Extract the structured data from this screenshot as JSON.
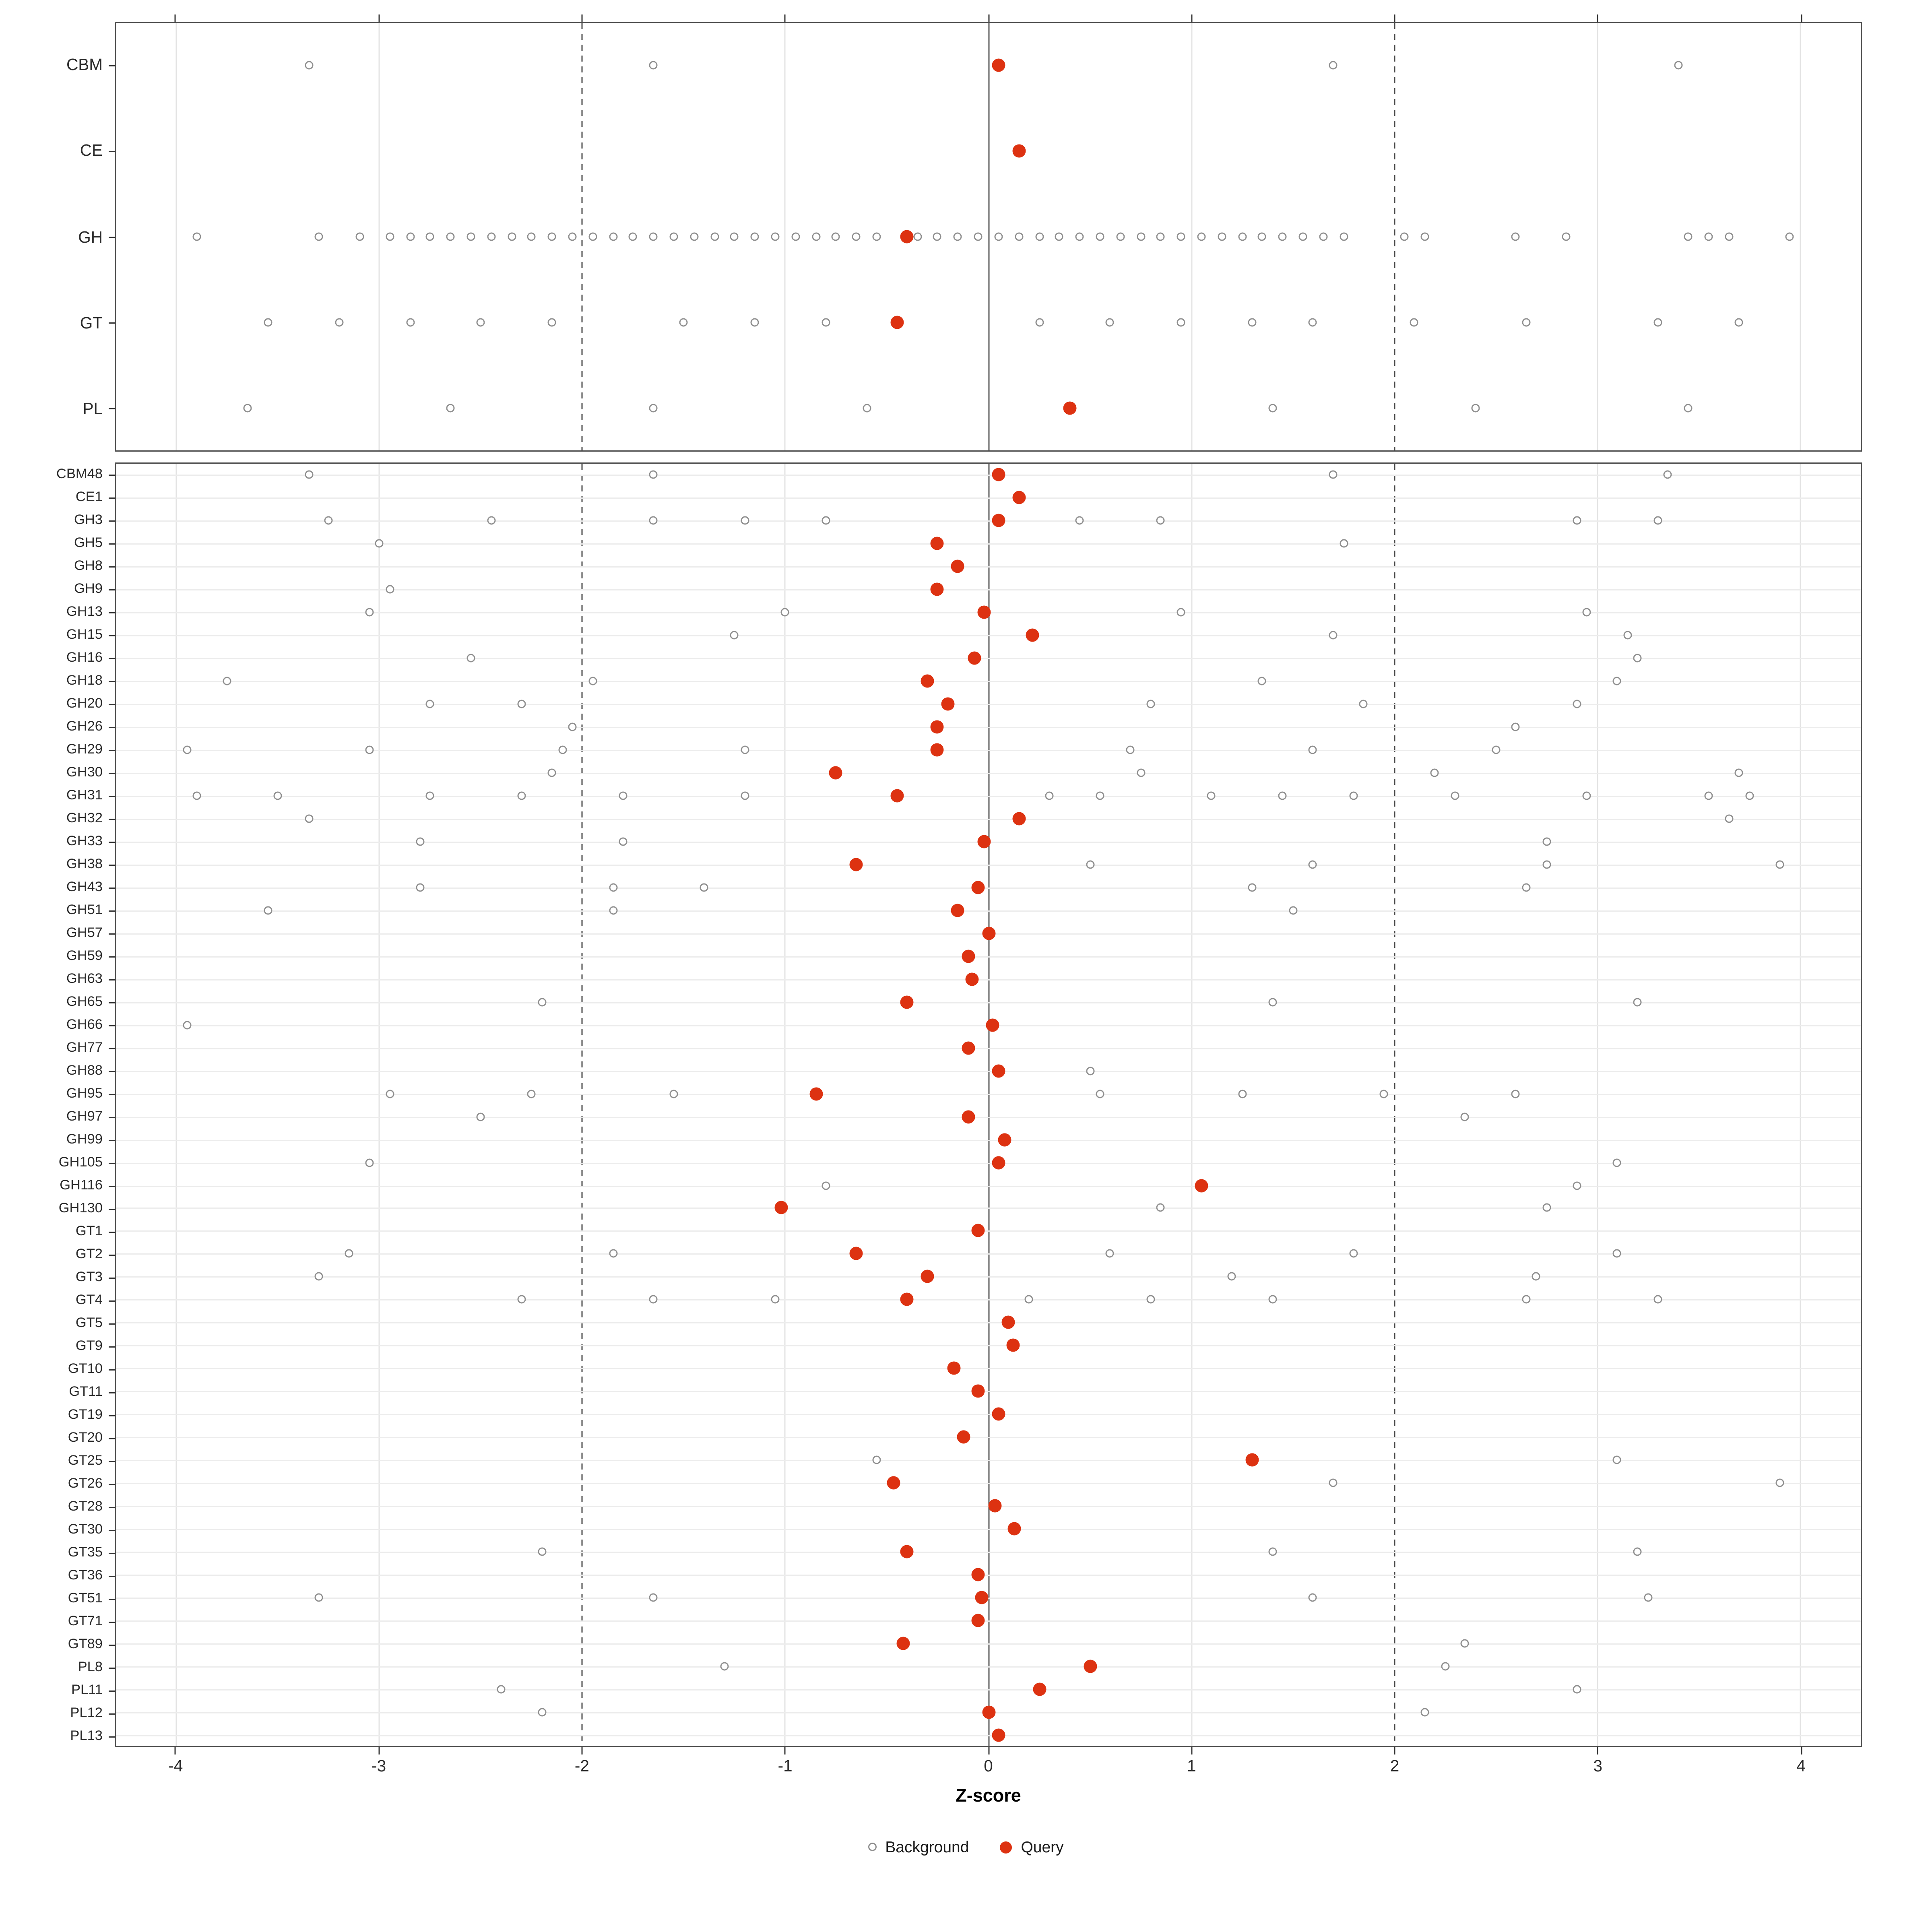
{
  "chart_data": {
    "type": "scatter",
    "subtype": "dot-plot",
    "title": "",
    "xlabel": "Z-score",
    "ylabel": "",
    "xlim": [
      -4.3,
      4.3
    ],
    "x_ticks": [
      -4,
      -3,
      -2,
      -1,
      0,
      1,
      2,
      3,
      4
    ],
    "dashed_lines": [
      -2,
      2
    ],
    "zero_line": 0,
    "grid": "on",
    "legend_position": "bottom",
    "legend": [
      {
        "label": "Background",
        "marker": "open-circle",
        "color": "#8f8f8f"
      },
      {
        "label": "Query",
        "marker": "filled-circle",
        "color": "#dd3211"
      }
    ],
    "colors": {
      "query": "#dd3211",
      "background_stroke": "#8f8f8f",
      "gridline": "#e3e3e3",
      "zero_line": "#565656",
      "panel_border": "#4d4d4d"
    },
    "panels": [
      {
        "name": "class-level",
        "hgrid": false,
        "rows": [
          {
            "label": "CBM",
            "background": [
              -3.35,
              -1.65,
              1.7,
              3.4
            ],
            "query": 0.05
          },
          {
            "label": "CE",
            "background": [],
            "query": 0.15
          },
          {
            "label": "GH",
            "background": [
              -3.9,
              -3.3,
              -3.1,
              -2.95,
              -2.85,
              -2.75,
              -2.65,
              -2.55,
              -2.45,
              -2.35,
              -2.25,
              -2.15,
              -2.05,
              -1.95,
              -1.85,
              -1.75,
              -1.65,
              -1.55,
              -1.45,
              -1.35,
              -1.25,
              -1.15,
              -1.05,
              -0.95,
              -0.85,
              -0.75,
              -0.65,
              -0.55,
              -0.35,
              -0.25,
              -0.15,
              -0.05,
              0.05,
              0.15,
              0.25,
              0.35,
              0.45,
              0.55,
              0.65,
              0.75,
              0.85,
              0.95,
              1.05,
              1.15,
              1.25,
              1.35,
              1.45,
              1.55,
              1.65,
              1.75,
              2.05,
              2.15,
              2.6,
              2.85,
              3.45,
              3.55,
              3.65,
              3.95
            ],
            "query": -0.4
          },
          {
            "label": "GT",
            "background": [
              -3.55,
              -3.2,
              -2.85,
              -2.5,
              -2.15,
              -1.5,
              -1.15,
              -0.8,
              0.25,
              0.6,
              0.95,
              1.3,
              1.6,
              2.1,
              2.65,
              3.3,
              3.7
            ],
            "query": -0.45
          },
          {
            "label": "PL",
            "background": [
              -3.65,
              -2.65,
              -1.65,
              -0.6,
              1.4,
              2.4,
              3.45
            ],
            "query": 0.4
          }
        ]
      },
      {
        "name": "family-level",
        "hgrid": true,
        "rows": [
          {
            "label": "CBM48",
            "background": [
              -3.35,
              -1.65,
              1.7,
              3.35
            ],
            "query": 0.05
          },
          {
            "label": "CE1",
            "background": [],
            "query": 0.15
          },
          {
            "label": "GH3",
            "background": [
              -3.25,
              -2.45,
              -1.65,
              -1.2,
              -0.8,
              0.45,
              0.85,
              2.9,
              3.3
            ],
            "query": 0.05
          },
          {
            "label": "GH5",
            "background": [
              -3.0,
              1.75
            ],
            "query": -0.25
          },
          {
            "label": "GH8",
            "background": [],
            "query": -0.15
          },
          {
            "label": "GH9",
            "background": [
              -2.95
            ],
            "query": -0.25
          },
          {
            "label": "GH13",
            "background": [
              -3.05,
              -1.0,
              0.95,
              2.95
            ],
            "query": -0.02
          },
          {
            "label": "GH15",
            "background": [
              -1.25,
              1.7,
              3.15
            ],
            "query": 0.22
          },
          {
            "label": "GH16",
            "background": [
              -2.55,
              3.2
            ],
            "query": -0.07
          },
          {
            "label": "GH18",
            "background": [
              -3.75,
              -1.95,
              1.35,
              3.1
            ],
            "query": -0.3
          },
          {
            "label": "GH20",
            "background": [
              -2.75,
              -2.3,
              0.8,
              1.85,
              2.9
            ],
            "query": -0.2
          },
          {
            "label": "GH26",
            "background": [
              -2.05,
              2.6
            ],
            "query": -0.25
          },
          {
            "label": "GH29",
            "background": [
              -3.95,
              -3.05,
              -2.1,
              -1.2,
              0.7,
              1.6,
              2.5
            ],
            "query": -0.25
          },
          {
            "label": "GH30",
            "background": [
              -2.15,
              0.75,
              2.2,
              3.7
            ],
            "query": -0.75
          },
          {
            "label": "GH31",
            "background": [
              -3.9,
              -3.5,
              -2.75,
              -2.3,
              -1.8,
              -1.2,
              0.3,
              0.55,
              1.1,
              1.45,
              1.8,
              2.3,
              2.95,
              3.55,
              3.75
            ],
            "query": -0.45
          },
          {
            "label": "GH32",
            "background": [
              -3.35,
              3.65
            ],
            "query": 0.15
          },
          {
            "label": "GH33",
            "background": [
              -2.8,
              -1.8,
              2.75
            ],
            "query": -0.02
          },
          {
            "label": "GH38",
            "background": [
              0.5,
              1.6,
              2.75,
              3.9
            ],
            "query": -0.65
          },
          {
            "label": "GH43",
            "background": [
              -2.8,
              -1.85,
              -1.4,
              1.3,
              2.65
            ],
            "query": -0.05
          },
          {
            "label": "GH51",
            "background": [
              -3.55,
              -1.85,
              1.5
            ],
            "query": -0.15
          },
          {
            "label": "GH57",
            "background": [],
            "query": 0.0
          },
          {
            "label": "GH59",
            "background": [],
            "query": -0.1
          },
          {
            "label": "GH63",
            "background": [],
            "query": -0.08
          },
          {
            "label": "GH65",
            "background": [
              -2.2,
              1.4,
              3.2
            ],
            "query": -0.4
          },
          {
            "label": "GH66",
            "background": [
              -3.95
            ],
            "query": 0.02
          },
          {
            "label": "GH77",
            "background": [],
            "query": -0.1
          },
          {
            "label": "GH88",
            "background": [
              0.5
            ],
            "query": 0.05
          },
          {
            "label": "GH95",
            "background": [
              -2.95,
              -2.25,
              -1.55,
              0.55,
              1.25,
              1.95,
              2.6
            ],
            "query": -0.85
          },
          {
            "label": "GH97",
            "background": [
              -2.5,
              2.35
            ],
            "query": -0.1
          },
          {
            "label": "GH99",
            "background": [],
            "query": 0.08
          },
          {
            "label": "GH105",
            "background": [
              -3.05,
              3.1
            ],
            "query": 0.05
          },
          {
            "label": "GH116",
            "background": [
              -0.8,
              2.9
            ],
            "query": 1.05
          },
          {
            "label": "GH130",
            "background": [
              0.85,
              2.75
            ],
            "query": -1.02
          },
          {
            "label": "GT1",
            "background": [],
            "query": -0.05
          },
          {
            "label": "GT2",
            "background": [
              -3.15,
              -1.85,
              0.6,
              1.8,
              3.1
            ],
            "query": -0.65
          },
          {
            "label": "GT3",
            "background": [
              -3.3,
              1.2,
              2.7
            ],
            "query": -0.3
          },
          {
            "label": "GT4",
            "background": [
              -2.3,
              -1.65,
              -1.05,
              0.2,
              0.8,
              1.4,
              2.65,
              3.3
            ],
            "query": -0.4
          },
          {
            "label": "GT5",
            "background": [],
            "query": 0.1
          },
          {
            "label": "GT9",
            "background": [],
            "query": 0.12
          },
          {
            "label": "GT10",
            "background": [],
            "query": -0.17
          },
          {
            "label": "GT11",
            "background": [],
            "query": -0.05
          },
          {
            "label": "GT19",
            "background": [],
            "query": 0.05
          },
          {
            "label": "GT20",
            "background": [],
            "query": -0.12
          },
          {
            "label": "GT25",
            "background": [
              -0.55,
              3.1
            ],
            "query": 1.3
          },
          {
            "label": "GT26",
            "background": [
              1.7,
              3.9
            ],
            "query": -0.47
          },
          {
            "label": "GT28",
            "background": [],
            "query": 0.03
          },
          {
            "label": "GT30",
            "background": [],
            "query": 0.13
          },
          {
            "label": "GT35",
            "background": [
              -2.2,
              1.4,
              3.2
            ],
            "query": -0.4
          },
          {
            "label": "GT36",
            "background": [],
            "query": -0.05
          },
          {
            "label": "GT51",
            "background": [
              -3.3,
              -1.65,
              1.6,
              3.25
            ],
            "query": -0.03
          },
          {
            "label": "GT71",
            "background": [],
            "query": -0.05
          },
          {
            "label": "GT89",
            "background": [
              2.35
            ],
            "query": -0.42
          },
          {
            "label": "PL8",
            "background": [
              -1.3,
              2.25
            ],
            "query": 0.5
          },
          {
            "label": "PL11",
            "background": [
              -2.4,
              2.9
            ],
            "query": 0.25
          },
          {
            "label": "PL12",
            "background": [
              -2.2,
              2.15
            ],
            "query": 0.0
          },
          {
            "label": "PL13",
            "background": [],
            "query": 0.05
          }
        ]
      }
    ]
  }
}
